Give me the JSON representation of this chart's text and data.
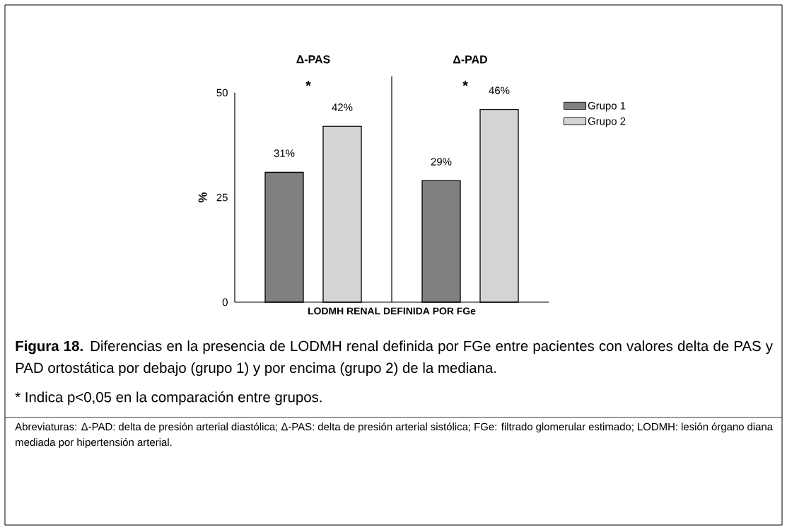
{
  "chart_data": {
    "type": "bar",
    "categories": [
      "Δ-PAS",
      "Δ-PAD"
    ],
    "series": [
      {
        "name": "Grupo 1",
        "color": "#808080",
        "values": [
          31,
          29
        ],
        "value_labels": [
          "31%",
          "29%"
        ]
      },
      {
        "name": "Grupo 2",
        "color": "#d4d4d4",
        "values": [
          42,
          46
        ],
        "value_labels": [
          "42%",
          "46%"
        ]
      }
    ],
    "xlabel": "LODMH RENAL DEFINIDA POR FGe",
    "ylabel": "%",
    "ylim": [
      0,
      50
    ],
    "yticks": [
      0,
      25,
      50
    ],
    "legend": "top right",
    "annotations": [
      "*",
      "*",
      "**Figura 18.** Diferencias en la presencia de LODMH renal definida por FGe entre pacientes con valores delta de PAS y PAD ortostática por debajo (grupo 1) y por encima (grupo 2) de la mediana.",
      "* Indica p<0,05 en la comparación entre grupos.",
      "Abreviaturas: Δ-PAD: delta de presión arterial diastólica; Δ-PAS: delta de presión arterial sistólica; FGe: filtrado glomerular estimado; LODMH: lesión órgano diana mediada por hipertensión arterial."
    ]
  }
}
